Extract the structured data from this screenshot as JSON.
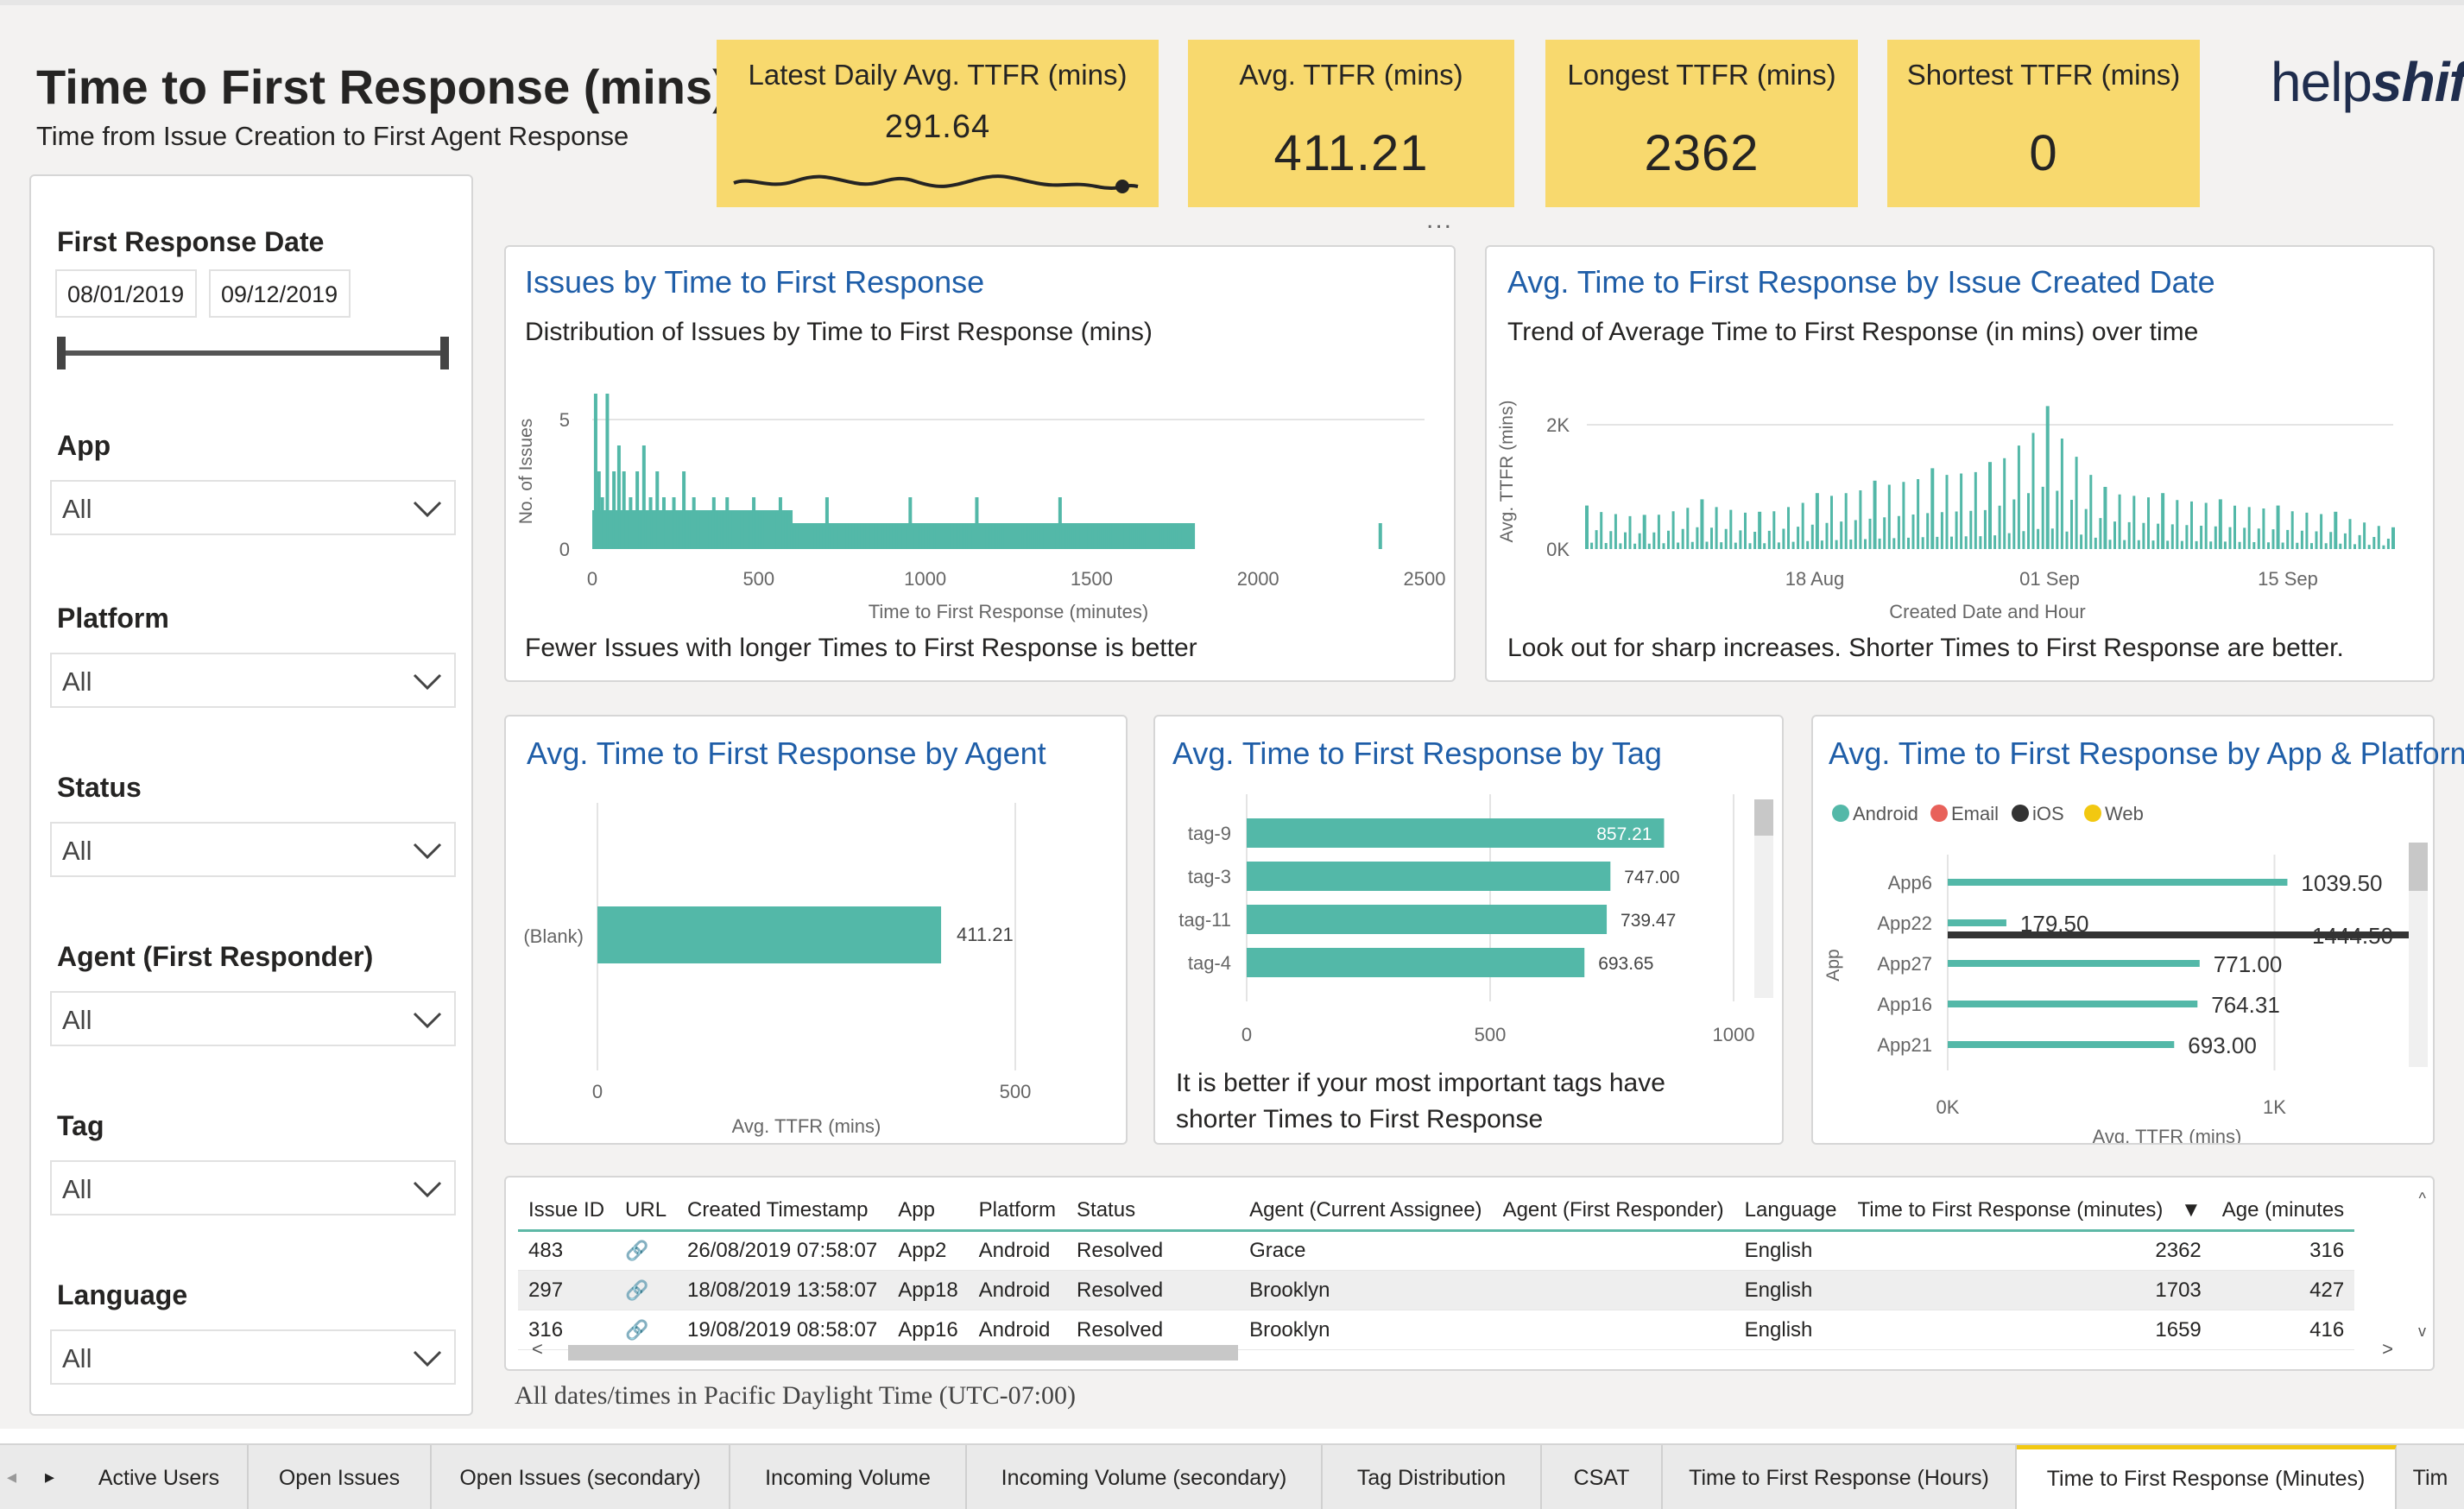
{
  "header": {
    "title": "Time to First Response (mins)",
    "subtitle": "Time from Issue Creation to First Agent Response",
    "logo": "helpshift"
  },
  "kpis": [
    {
      "label": "Latest Daily Avg. TTFR (mins)",
      "value": "291.64"
    },
    {
      "label": "Avg. TTFR (mins)",
      "value": "411.21"
    },
    {
      "label": "Longest TTFR (mins)",
      "value": "2362"
    },
    {
      "label": "Shortest TTFR (mins)",
      "value": "0"
    }
  ],
  "filters": {
    "date": {
      "label": "First Response Date",
      "start": "08/01/2019",
      "end": "09/12/2019"
    },
    "slicers": [
      {
        "label": "App",
        "value": "All"
      },
      {
        "label": "Platform",
        "value": "All"
      },
      {
        "label": "Status",
        "value": "All"
      },
      {
        "label": "Agent (First Responder)",
        "value": "All"
      },
      {
        "label": "Tag",
        "value": "All"
      },
      {
        "label": "Language",
        "value": "All"
      }
    ]
  },
  "panels": {
    "histogram": {
      "title": "Issues by Time to First Response",
      "subtitle": "Distribution of Issues by Time to First Response (mins)",
      "note": "Fewer Issues with longer Times to First Response is better"
    },
    "trend": {
      "title": "Avg. Time to First Response by Issue Created Date",
      "subtitle": "Trend of Average Time to First Response (in mins) over time",
      "note": "Look out for sharp increases. Shorter Times to First Response are better."
    },
    "agent": {
      "title": "Avg. Time to First Response by Agent"
    },
    "tag": {
      "title": "Avg. Time to First Response by Tag",
      "note_line1": "It is better if your most important tags have",
      "note_line2": "shorter Times to First Response"
    },
    "app": {
      "title": "Avg. Time to First Response by App & Platform"
    }
  },
  "colors": {
    "teal": "#53b8a8",
    "kpi": "#f8d96e",
    "title_blue": "#1f5ea8",
    "ios": "#333333",
    "email": "#e8615a",
    "web": "#f2c811"
  },
  "chart_data": [
    {
      "type": "bar",
      "title": "Issues by Time to First Response",
      "xlabel": "Time to First Response (minutes)",
      "ylabel": "No. of Issues",
      "xlim": [
        0,
        2500
      ],
      "ylim": [
        0,
        6
      ],
      "xticks": [
        "0",
        "500",
        "1000",
        "1500",
        "2000",
        "2500"
      ],
      "yticks": [
        "0",
        "5"
      ],
      "x": [
        5,
        15,
        25,
        40,
        60,
        75,
        90,
        110,
        130,
        150,
        170,
        190,
        210,
        240,
        270,
        300,
        330,
        360,
        400,
        440,
        480,
        520,
        560,
        600,
        650,
        700,
        750,
        800,
        850,
        900,
        950,
        1000,
        1050,
        1100,
        1150,
        1200,
        1250,
        1300,
        1350,
        1400,
        1450,
        1500,
        1550,
        1600,
        1650,
        1700,
        1750,
        1800,
        2362
      ],
      "values": [
        6,
        3,
        2,
        6,
        3,
        4,
        3,
        2,
        3,
        4,
        2,
        3,
        2,
        2,
        3,
        2,
        1,
        2,
        2,
        1,
        2,
        1,
        2,
        1,
        1,
        2,
        1,
        1,
        1,
        1,
        2,
        1,
        1,
        1,
        2,
        1,
        1,
        1,
        1,
        2,
        1,
        1,
        1,
        1,
        1,
        1,
        1,
        1,
        1
      ]
    },
    {
      "type": "line",
      "title": "Avg. Time to First Response by Issue Created Date",
      "xlabel": "Created Date and Hour",
      "ylabel": "Avg. TTFR (mins)",
      "ylim": [
        0,
        2500
      ],
      "yticks": [
        "0K",
        "2K"
      ],
      "xticks": [
        "18 Aug",
        "01 Sep",
        "15 Sep"
      ],
      "x": [
        "Aug 6",
        "Aug 9",
        "Aug 12",
        "Aug 15",
        "Aug 18",
        "Aug 21",
        "Aug 24",
        "Aug 27",
        "Aug 30",
        "Sep 2",
        "Sep 5",
        "Sep 8",
        "Sep 11",
        "Sep 14",
        "Sep 17"
      ],
      "values": [
        700,
        550,
        800,
        600,
        900,
        1100,
        1300,
        1400,
        2300,
        1000,
        900,
        800,
        700,
        600,
        350
      ]
    },
    {
      "type": "bar",
      "title": "Avg. Time to First Response by Agent",
      "xlabel": "Avg. TTFR (mins)",
      "xlim": [
        0,
        500
      ],
      "xticks": [
        "0",
        "500"
      ],
      "categories": [
        "(Blank)"
      ],
      "values": [
        411.21
      ],
      "labels": [
        "411.21"
      ]
    },
    {
      "type": "bar",
      "title": "Avg. Time to First Response by Tag",
      "xlabel": "Avg. TTFR (mins)",
      "xlim": [
        0,
        1000
      ],
      "xticks": [
        "0",
        "500",
        "1000"
      ],
      "categories": [
        "tag-9",
        "tag-3",
        "tag-11",
        "tag-4"
      ],
      "values": [
        857.21,
        747.0,
        739.47,
        693.65
      ],
      "labels": [
        "857.21",
        "747.00",
        "739.47",
        "693.65"
      ]
    },
    {
      "type": "bar",
      "title": "Avg. Time to First Response by App & Platform",
      "xlabel": "Avg. TTFR (mins)",
      "ylabel": "App",
      "xlim": [
        0,
        1500
      ],
      "xticks": [
        "0K",
        "1K"
      ],
      "legend": [
        "Android",
        "Email",
        "iOS",
        "Web"
      ],
      "categories": [
        "App6",
        "App22",
        "App27",
        "App16",
        "App21"
      ],
      "series": [
        {
          "name": "Android",
          "values": [
            1039.5,
            179.5,
            771.0,
            764.31,
            693.0
          ],
          "labels": [
            "1039.50",
            "179.50",
            "771.00",
            "764.31",
            "693.00"
          ]
        },
        {
          "name": "iOS",
          "values": [
            null,
            1444.5,
            null,
            null,
            null
          ],
          "labels": [
            "",
            "1444.50",
            "",
            "",
            ""
          ]
        }
      ]
    }
  ],
  "table": {
    "columns": [
      "Issue ID",
      "URL",
      "Created Timestamp",
      "App",
      "Platform",
      "Status",
      "Agent (Current Assignee)",
      "Agent (First Responder)",
      "Language",
      "Time to First Response (minutes)",
      "Age (minutes"
    ],
    "rows": [
      [
        "483",
        "",
        "26/08/2019 07:58:07",
        "App2",
        "Android",
        "Resolved",
        "Grace",
        "",
        "English",
        "2362",
        "316"
      ],
      [
        "297",
        "",
        "18/08/2019 13:58:07",
        "App18",
        "Android",
        "Resolved",
        "Brooklyn",
        "",
        "English",
        "1703",
        "427"
      ],
      [
        "316",
        "",
        "19/08/2019 08:58:07",
        "App16",
        "Android",
        "Resolved",
        "Brooklyn",
        "",
        "English",
        "1659",
        "416"
      ]
    ]
  },
  "footnote": "All dates/times in Pacific Daylight Time (UTC-07:00)",
  "tabs": [
    "Active Users",
    "Open Issues",
    "Open Issues (secondary)",
    "Incoming Volume",
    "Incoming Volume (secondary)",
    "Tag Distribution",
    "CSAT",
    "Time to First Response (Hours)",
    "Time to First Response (Minutes)",
    "Tim"
  ]
}
